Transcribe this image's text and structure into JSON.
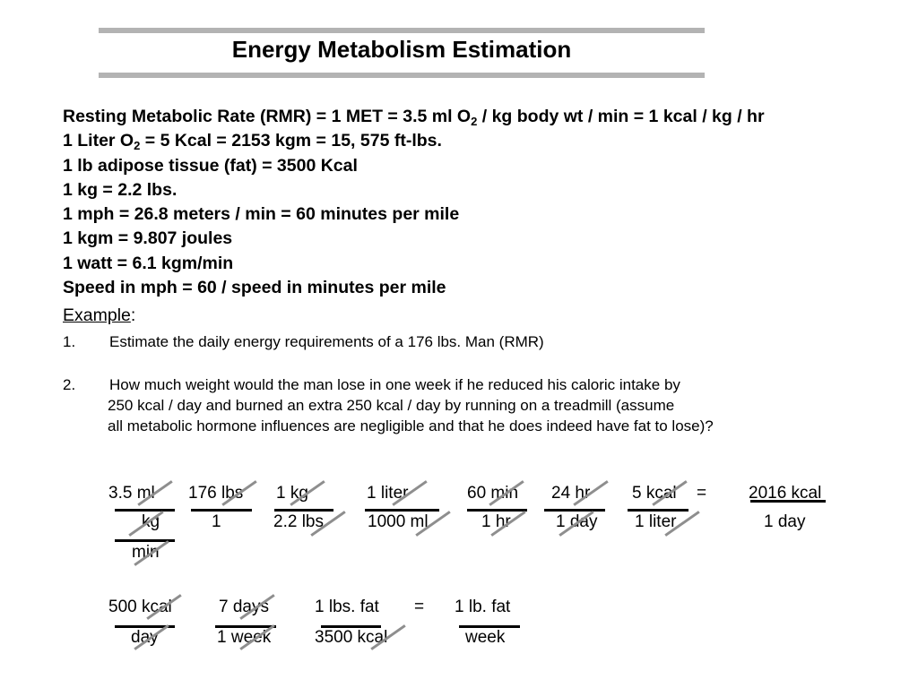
{
  "title": "Energy Metabolism Estimation",
  "facts": [
    {
      "pre": "Resting Metabolic Rate (RMR) = 1 MET = 3.5 ml O",
      "sub": "2",
      "post": " / kg body wt / min = 1 kcal / kg / hr"
    },
    {
      "pre": "1 Liter O",
      "sub": "2",
      "post": " = 5 Kcal = 2153 kgm = 15, 575 ft-lbs."
    },
    {
      "pre": "1 lb adipose tissue (fat) = 3500 Kcal"
    },
    {
      "pre": "1 kg = 2.2 lbs."
    },
    {
      "pre": "1 mph = 26.8 meters / min = 60 minutes per mile"
    },
    {
      "pre": "1 kgm = 9.807 joules"
    },
    {
      "pre": "1 watt = 6.1 kgm/min"
    },
    {
      "pre": "Speed in mph  =  60 / speed in minutes per mile"
    }
  ],
  "example": {
    "label": "Example",
    "colon": ":"
  },
  "questions": [
    {
      "num": "1.",
      "lines": [
        "Estimate the daily energy requirements of a 176 lbs. Man (RMR)"
      ]
    },
    {
      "num": "2.",
      "lines": [
        "How much weight would the man lose in one week if he reduced his caloric intake by",
        "250 kcal / day and burned an extra 250 kcal / day by running on a treadmill (assume",
        "all metabolic hormone influences are negligible and that he does indeed have fat to lose)?"
      ]
    }
  ],
  "calc1": {
    "numerators": [
      "3.5 ml",
      "176 lbs",
      "1 kg",
      "1 liter",
      "60 min",
      "24 hr",
      "5 kcal",
      "=",
      "2016 kcal"
    ],
    "denominators": [
      "kg",
      "1",
      "2.2 lbs",
      "1000 ml",
      "1 hr",
      "1 day",
      "1 liter",
      "1 day"
    ],
    "extra": "min"
  },
  "calc2": {
    "numerators": [
      "500 kcal",
      "7 days",
      "1 lbs. fat",
      "=",
      "1 lb. fat"
    ],
    "denominators": [
      "day",
      "1 week",
      "3500 kcal",
      "week"
    ]
  }
}
